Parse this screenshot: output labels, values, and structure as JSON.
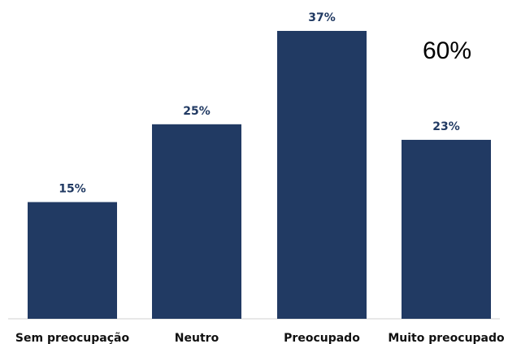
{
  "chart_data": {
    "type": "bar",
    "categories": [
      "Sem preocupação",
      "Neutro",
      "Preocupado",
      "Muito preocupado"
    ],
    "values": [
      15,
      25,
      37,
      23
    ],
    "value_labels": [
      "15%",
      "25%",
      "37%",
      "23%"
    ],
    "title": "",
    "xlabel": "",
    "ylabel": "",
    "ylim": [
      0,
      37
    ],
    "grid": false,
    "legend": "none",
    "annotation": "60%",
    "colors": {
      "bar": "#213a63",
      "data_label": "#213a63",
      "category_label": "#111111"
    }
  }
}
